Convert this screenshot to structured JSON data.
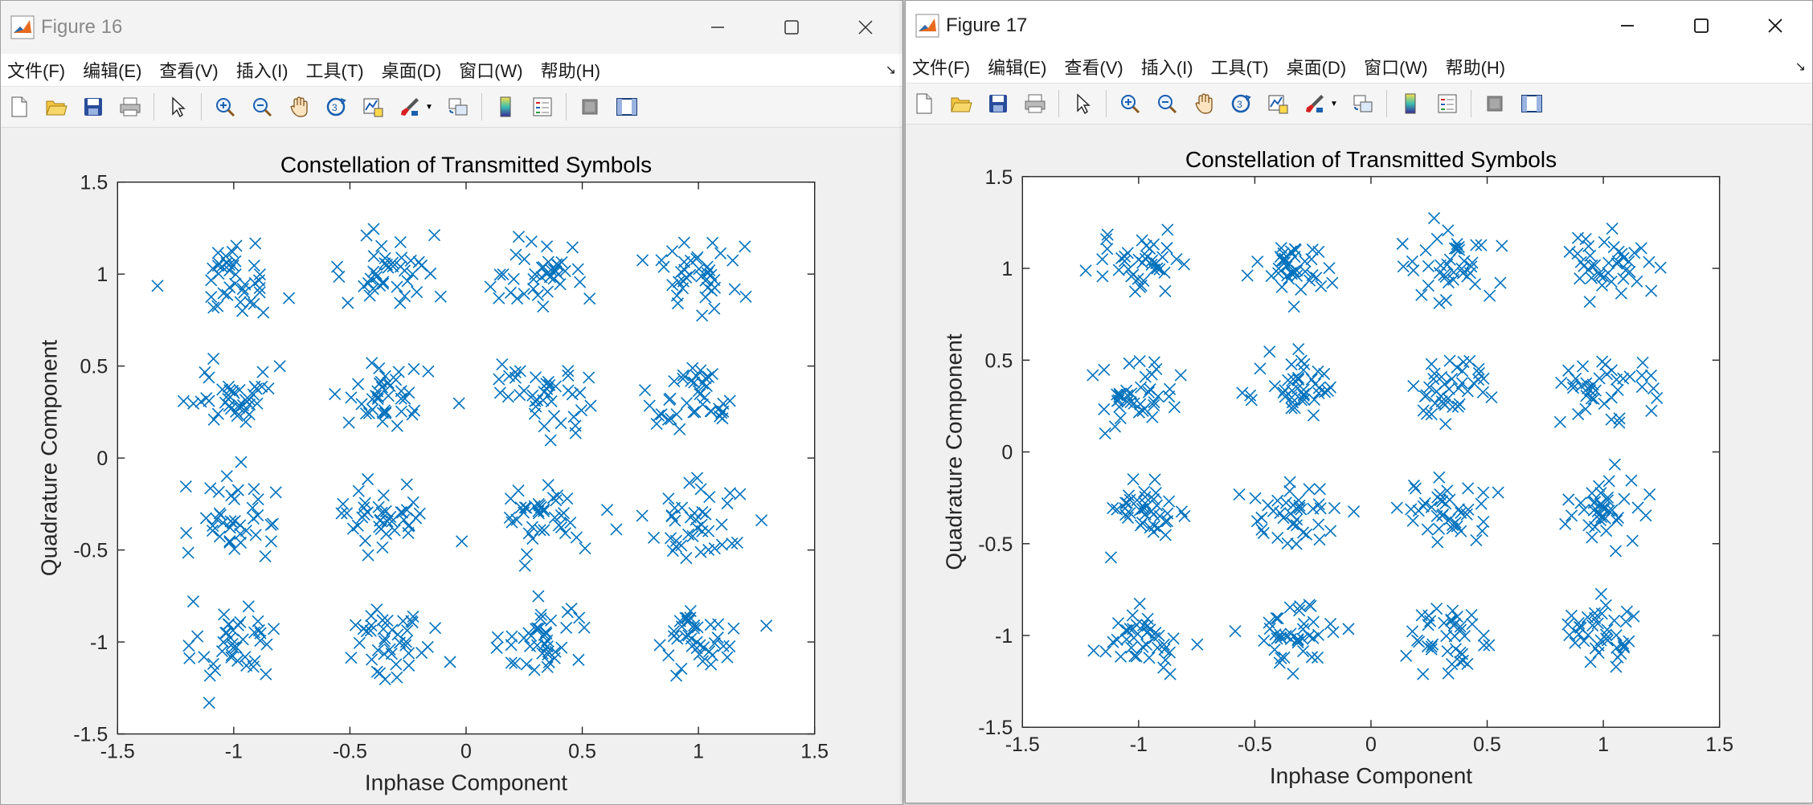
{
  "colors": {
    "marker": "#0072BD",
    "axes_bg": "#ffffff",
    "window_bg": "#f0f0f0"
  },
  "menu": [
    "文件(F)",
    "编辑(E)",
    "查看(V)",
    "插入(I)",
    "工具(T)",
    "桌面(D)",
    "窗口(W)",
    "帮助(H)"
  ],
  "toolbar_icons": [
    "new-figure-icon",
    "open-file-icon",
    "save-icon",
    "print-icon",
    "pointer-icon",
    "zoom-in-icon",
    "zoom-out-icon",
    "pan-hand-icon",
    "rotate-3d-icon",
    "data-cursor-icon",
    "brush-icon",
    "link-plot-icon",
    "colorbar-icon",
    "legend-icon",
    "hide-plot-tools-icon",
    "show-plot-tools-icon"
  ],
  "windows": [
    {
      "title": "Figure 16",
      "chart_data": {
        "type": "scatter",
        "title": "Constellation of Transmitted Symbols",
        "xlabel": "Inphase Component",
        "ylabel": "Quadrature Component",
        "xlim": [
          -1.5,
          1.5
        ],
        "ylim": [
          -1.5,
          1.5
        ],
        "xticks": [
          "-1.5",
          "-1",
          "-0.5",
          "0",
          "0.5",
          "1",
          "1.5"
        ],
        "yticks": [
          "-1.5",
          "-1",
          "-0.5",
          "0",
          "0.5",
          "1",
          "1.5"
        ],
        "marker": "x",
        "constellation_points": [
          [
            -1,
            1
          ],
          [
            -0.3333,
            1
          ],
          [
            0.3333,
            1
          ],
          [
            1,
            1
          ],
          [
            -1,
            0.3333
          ],
          [
            -0.3333,
            0.3333
          ],
          [
            0.3333,
            0.3333
          ],
          [
            1,
            0.3333
          ],
          [
            -1,
            -0.3333
          ],
          [
            -0.3333,
            -0.3333
          ],
          [
            0.3333,
            -0.3333
          ],
          [
            1,
            -0.3333
          ],
          [
            -1,
            -1
          ],
          [
            -0.3333,
            -1
          ],
          [
            0.3333,
            -1
          ],
          [
            1,
            -1
          ]
        ],
        "points_per_cluster": 40,
        "noise_std": 0.1,
        "grid": false
      }
    },
    {
      "title": "Figure 17",
      "chart_data": {
        "type": "scatter",
        "title": "Constellation of Transmitted Symbols",
        "xlabel": "Inphase Component",
        "ylabel": "Quadrature Component",
        "xlim": [
          -1.5,
          1.5
        ],
        "ylim": [
          -1.5,
          1.5
        ],
        "xticks": [
          "-1.5",
          "-1",
          "-0.5",
          "0",
          "0.5",
          "1",
          "1.5"
        ],
        "yticks": [
          "-1.5",
          "-1",
          "-0.5",
          "0",
          "0.5",
          "1",
          "1.5"
        ],
        "marker": "x",
        "constellation_points": [
          [
            -1,
            1
          ],
          [
            -0.3333,
            1
          ],
          [
            0.3333,
            1
          ],
          [
            1,
            1
          ],
          [
            -1,
            0.3333
          ],
          [
            -0.3333,
            0.3333
          ],
          [
            0.3333,
            0.3333
          ],
          [
            1,
            0.3333
          ],
          [
            -1,
            -0.3333
          ],
          [
            -0.3333,
            -0.3333
          ],
          [
            0.3333,
            -0.3333
          ],
          [
            1,
            -0.3333
          ],
          [
            -1,
            -1
          ],
          [
            -0.3333,
            -1
          ],
          [
            0.3333,
            -1
          ],
          [
            1,
            -1
          ]
        ],
        "points_per_cluster": 40,
        "noise_std": 0.09,
        "grid": false
      }
    }
  ]
}
